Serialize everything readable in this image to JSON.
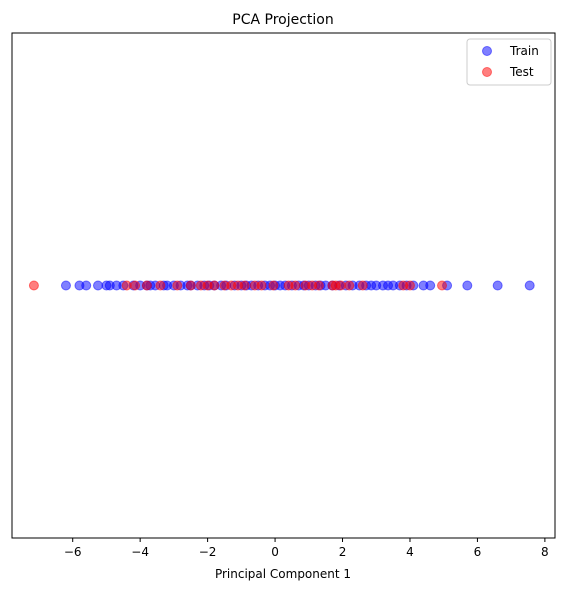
{
  "chart_data": {
    "type": "scatter",
    "title": "PCA Projection",
    "xlabel": "Principal Component 1",
    "ylabel": "",
    "xlim": [
      -7.8,
      8.3
    ],
    "ylim": [
      -1,
      1
    ],
    "xticks": [
      -6,
      -4,
      -2,
      0,
      2,
      4,
      6,
      8
    ],
    "xtick_labels": [
      "−6",
      "−4",
      "−2",
      "0",
      "2",
      "4",
      "6",
      "8"
    ],
    "grid": false,
    "legend": {
      "placement": "top-right",
      "entries": [
        {
          "name": "Train",
          "color": "#0000ff"
        },
        {
          "name": "Test",
          "color": "#ff0000"
        }
      ]
    },
    "series": [
      {
        "name": "Train",
        "color": "#0000ff",
        "alpha": 0.5,
        "points": [
          {
            "x": -6.2,
            "y": 0
          },
          {
            "x": -5.8,
            "y": 0
          },
          {
            "x": -5.6,
            "y": 0
          },
          {
            "x": -5.25,
            "y": 0
          },
          {
            "x": -5.0,
            "y": 0
          },
          {
            "x": -4.9,
            "y": 0
          },
          {
            "x": -4.7,
            "y": 0
          },
          {
            "x": -4.5,
            "y": 0
          },
          {
            "x": -4.2,
            "y": 0
          },
          {
            "x": -4.0,
            "y": 0
          },
          {
            "x": -3.8,
            "y": 0
          },
          {
            "x": -3.7,
            "y": 0
          },
          {
            "x": -3.55,
            "y": 0
          },
          {
            "x": -3.3,
            "y": 0
          },
          {
            "x": -3.2,
            "y": 0
          },
          {
            "x": -3.0,
            "y": 0
          },
          {
            "x": -2.8,
            "y": 0
          },
          {
            "x": -2.6,
            "y": 0
          },
          {
            "x": -2.5,
            "y": 0
          },
          {
            "x": -2.3,
            "y": 0
          },
          {
            "x": -2.1,
            "y": 0
          },
          {
            "x": -1.95,
            "y": 0
          },
          {
            "x": -1.8,
            "y": 0
          },
          {
            "x": -1.6,
            "y": 0
          },
          {
            "x": -1.45,
            "y": 0
          },
          {
            "x": -1.2,
            "y": 0
          },
          {
            "x": -1.0,
            "y": 0
          },
          {
            "x": -0.85,
            "y": 0
          },
          {
            "x": -0.7,
            "y": 0
          },
          {
            "x": -0.5,
            "y": 0
          },
          {
            "x": -0.3,
            "y": 0
          },
          {
            "x": -0.15,
            "y": 0
          },
          {
            "x": 0.0,
            "y": 0
          },
          {
            "x": 0.15,
            "y": 0
          },
          {
            "x": 0.3,
            "y": 0
          },
          {
            "x": 0.5,
            "y": 0
          },
          {
            "x": 0.7,
            "y": 0
          },
          {
            "x": 0.85,
            "y": 0
          },
          {
            "x": 1.0,
            "y": 0
          },
          {
            "x": 1.2,
            "y": 0
          },
          {
            "x": 1.35,
            "y": 0
          },
          {
            "x": 1.5,
            "y": 0
          },
          {
            "x": 1.7,
            "y": 0
          },
          {
            "x": 1.9,
            "y": 0
          },
          {
            "x": 2.1,
            "y": 0
          },
          {
            "x": 2.3,
            "y": 0
          },
          {
            "x": 2.5,
            "y": 0
          },
          {
            "x": 2.7,
            "y": 0
          },
          {
            "x": 2.85,
            "y": 0
          },
          {
            "x": 3.0,
            "y": 0
          },
          {
            "x": 3.2,
            "y": 0
          },
          {
            "x": 3.35,
            "y": 0
          },
          {
            "x": 3.5,
            "y": 0
          },
          {
            "x": 3.7,
            "y": 0
          },
          {
            "x": 3.9,
            "y": 0
          },
          {
            "x": 4.1,
            "y": 0
          },
          {
            "x": 4.4,
            "y": 0
          },
          {
            "x": 4.6,
            "y": 0
          },
          {
            "x": 5.1,
            "y": 0
          },
          {
            "x": 5.7,
            "y": 0
          },
          {
            "x": 6.6,
            "y": 0
          },
          {
            "x": 7.55,
            "y": 0
          }
        ]
      },
      {
        "name": "Test",
        "color": "#ff0000",
        "alpha": 0.5,
        "points": [
          {
            "x": -7.15,
            "y": 0
          },
          {
            "x": -4.4,
            "y": 0
          },
          {
            "x": -4.15,
            "y": 0
          },
          {
            "x": -3.8,
            "y": 0
          },
          {
            "x": -3.4,
            "y": 0
          },
          {
            "x": -2.9,
            "y": 0
          },
          {
            "x": -2.5,
            "y": 0
          },
          {
            "x": -2.2,
            "y": 0
          },
          {
            "x": -2.0,
            "y": 0
          },
          {
            "x": -1.8,
            "y": 0
          },
          {
            "x": -1.5,
            "y": 0
          },
          {
            "x": -1.3,
            "y": 0
          },
          {
            "x": -1.1,
            "y": 0
          },
          {
            "x": -0.9,
            "y": 0
          },
          {
            "x": -0.6,
            "y": 0
          },
          {
            "x": -0.4,
            "y": 0
          },
          {
            "x": -0.05,
            "y": 0
          },
          {
            "x": 0.4,
            "y": 0
          },
          {
            "x": 0.6,
            "y": 0
          },
          {
            "x": 0.9,
            "y": 0
          },
          {
            "x": 1.1,
            "y": 0
          },
          {
            "x": 1.3,
            "y": 0
          },
          {
            "x": 1.7,
            "y": 0
          },
          {
            "x": 1.8,
            "y": 0
          },
          {
            "x": 1.95,
            "y": 0
          },
          {
            "x": 2.2,
            "y": 0
          },
          {
            "x": 2.6,
            "y": 0
          },
          {
            "x": 3.8,
            "y": 0
          },
          {
            "x": 4.0,
            "y": 0
          },
          {
            "x": 4.95,
            "y": 0
          }
        ]
      }
    ]
  }
}
